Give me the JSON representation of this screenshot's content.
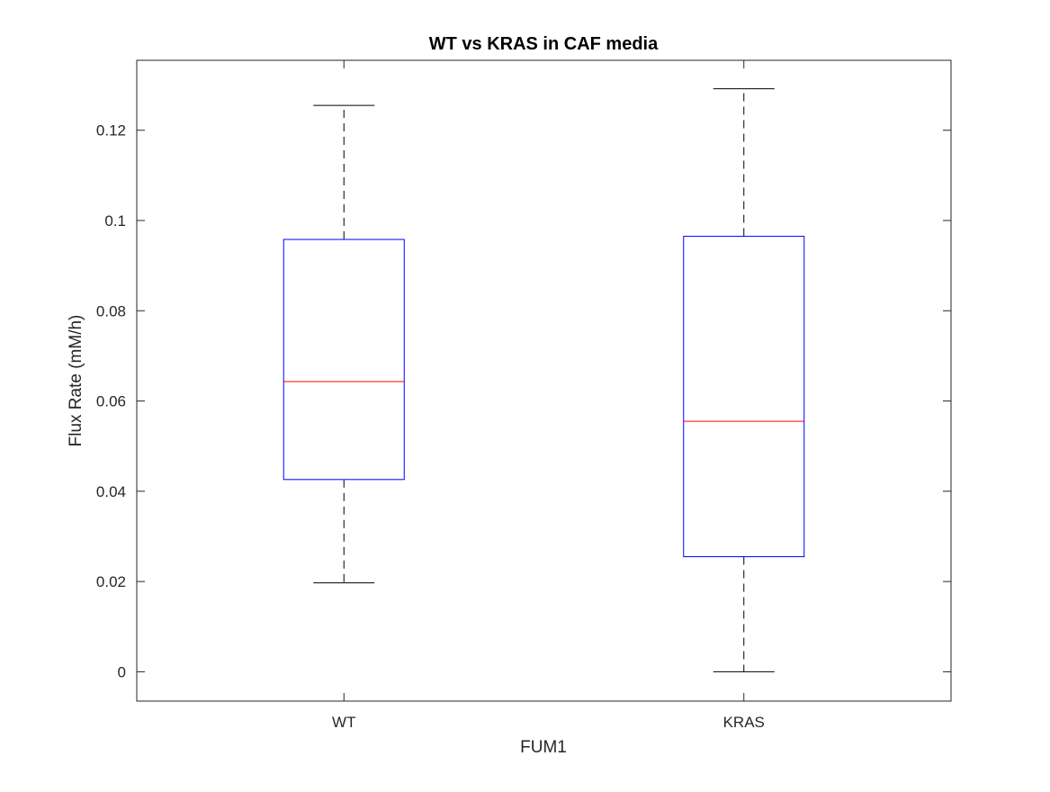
{
  "chart_data": {
    "type": "box",
    "title": "WT vs KRAS in CAF media",
    "xlabel": "FUM1",
    "ylabel": "Flux Rate (mM/h)",
    "ylim": [
      -0.0065,
      0.1355
    ],
    "yticks": [
      0,
      0.02,
      0.04,
      0.06,
      0.08,
      0.1,
      0.12
    ],
    "ytick_labels": [
      "0",
      "0.02",
      "0.04",
      "0.06",
      "0.08",
      "0.1",
      "0.12"
    ],
    "grid": false,
    "categories": [
      "WT",
      "KRAS"
    ],
    "boxes": [
      {
        "label": "WT",
        "whisker_low": 0.0197,
        "q1": 0.0426,
        "median": 0.0643,
        "q3": 0.0958,
        "whisker_high": 0.1255
      },
      {
        "label": "KRAS",
        "whisker_low": 0.0,
        "q1": 0.0255,
        "median": 0.0555,
        "q3": 0.0965,
        "whisker_high": 0.1292
      }
    ],
    "colors": {
      "box": "#0000ff",
      "median": "#ff0000",
      "whisker": "#000000",
      "axes": "#262626"
    }
  }
}
